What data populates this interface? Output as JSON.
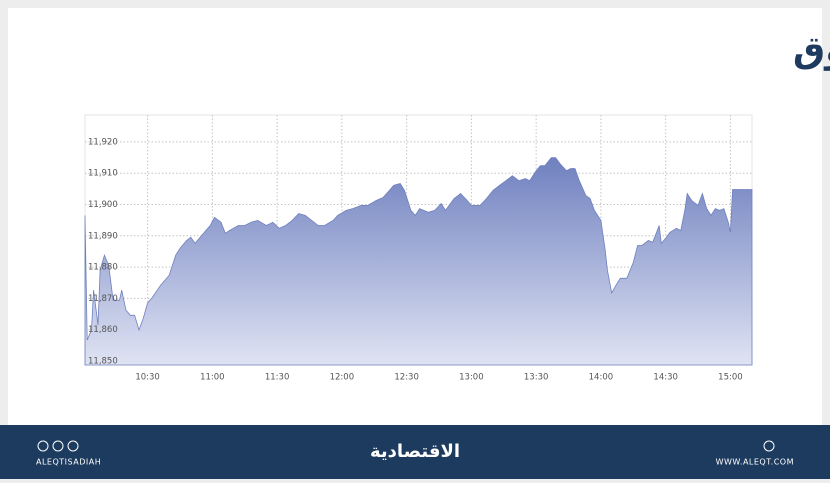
{
  "chart_data": {
    "type": "area",
    "title": "مؤشر السوق",
    "color": "#6f80bf",
    "grid": true,
    "x": [
      "10:01",
      "10:02",
      "10:04",
      "10:05",
      "10:07",
      "10:08",
      "10:10",
      "10:12",
      "10:14",
      "10:17",
      "10:18",
      "10:20",
      "10:22",
      "10:24",
      "10:26",
      "10:28",
      "10:30",
      "10:32",
      "10:36",
      "10:40",
      "10:43",
      "10:45",
      "10:48",
      "10:50",
      "10:52",
      "10:55",
      "10:57",
      "10:59",
      "11:01",
      "11:04",
      "11:06",
      "11:08",
      "11:12",
      "11:15",
      "11:18",
      "11:21",
      "11:25",
      "11:28",
      "11:31",
      "11:34",
      "11:37",
      "11:40",
      "11:43",
      "11:46",
      "11:49",
      "11:52",
      "11:56",
      "11:58",
      "12:02",
      "12:05",
      "12:09",
      "12:12",
      "12:16",
      "12:19",
      "12:22",
      "12:24",
      "12:27",
      "12:29",
      "12:32",
      "12:34",
      "12:36",
      "12:40",
      "12:43",
      "12:46",
      "12:48",
      "12:52",
      "12:55",
      "12:58",
      "13:00",
      "13:04",
      "13:07",
      "13:10",
      "13:13",
      "13:16",
      "13:19",
      "13:22",
      "13:25",
      "13:27",
      "13:30",
      "13:32",
      "13:34",
      "13:37",
      "13:39",
      "13:41",
      "13:44",
      "13:46",
      "13:48",
      "13:50",
      "13:53",
      "13:55",
      "13:57",
      "14:00",
      "14:02",
      "14:03",
      "14:05",
      "14:07",
      "14:09",
      "14:12",
      "14:15",
      "14:17",
      "14:19",
      "14:22",
      "14:24",
      "14:27",
      "14:28",
      "14:30",
      "14:32",
      "14:35",
      "14:37",
      "14:39",
      "14:40",
      "14:42",
      "14:45",
      "14:47",
      "14:49",
      "14:51",
      "14:53",
      "14:55",
      "14:57",
      "14:59",
      "15:00",
      "15:01",
      "15:10"
    ],
    "values": [
      11896.5,
      11856.7,
      11859.9,
      11872.6,
      11861.5,
      11879.0,
      11883.8,
      11880.6,
      11869.4,
      11869.4,
      11872.6,
      11866.2,
      11864.6,
      11864.6,
      11859.9,
      11863.7,
      11868.5,
      11870.1,
      11874.2,
      11877.4,
      11883.8,
      11886.0,
      11888.5,
      11889.5,
      11887.6,
      11890.1,
      11891.7,
      11893.3,
      11895.9,
      11894.3,
      11890.8,
      11891.7,
      11893.3,
      11893.3,
      11894.3,
      11894.9,
      11893.3,
      11894.3,
      11892.4,
      11893.3,
      11894.9,
      11897.1,
      11896.5,
      11894.9,
      11893.3,
      11893.3,
      11894.9,
      11896.5,
      11898.1,
      11898.7,
      11899.7,
      11899.7,
      11901.3,
      11902.2,
      11904.5,
      11906.1,
      11906.7,
      11904.5,
      11898.1,
      11896.5,
      11898.7,
      11897.5,
      11898.1,
      11900.3,
      11898.1,
      11901.9,
      11903.5,
      11901.3,
      11899.7,
      11899.7,
      11901.9,
      11904.5,
      11906.1,
      11907.6,
      11909.2,
      11907.6,
      11908.3,
      11907.6,
      11910.8,
      11912.4,
      11912.4,
      11915.0,
      11915.0,
      11913.1,
      11910.8,
      11911.5,
      11911.5,
      11907.6,
      11902.9,
      11901.9,
      11898.1,
      11894.9,
      11885.4,
      11879.0,
      11871.7,
      11874.2,
      11876.4,
      11876.4,
      11881.5,
      11886.9,
      11886.9,
      11888.5,
      11887.9,
      11893.3,
      11887.6,
      11889.2,
      11891.1,
      11892.4,
      11891.7,
      11898.7,
      11903.5,
      11901.3,
      11899.7,
      11903.5,
      11898.7,
      11896.5,
      11898.7,
      11898.1,
      11898.7,
      11894.3,
      11891.1,
      11904.8,
      11904.8
    ],
    "xlim": [
      "10:01",
      "15:10"
    ],
    "xticks": [
      "10:30",
      "11:00",
      "11:30",
      "12:00",
      "12:30",
      "13:00",
      "13:30",
      "14:00",
      "14:30",
      "15:00"
    ],
    "ylim": [
      11848.7,
      11928.6
    ],
    "yticks": [
      {
        "value": 11850,
        "label": "11,850"
      },
      {
        "value": 11860,
        "label": "11,860"
      },
      {
        "value": 11870,
        "label": "11,870"
      },
      {
        "value": 11880,
        "label": "11,880"
      },
      {
        "value": 11890,
        "label": "11,890"
      },
      {
        "value": 11900,
        "label": "11,900"
      },
      {
        "value": 11910,
        "label": "11,910"
      },
      {
        "value": 11920,
        "label": "11,920"
      }
    ]
  },
  "footer": {
    "handle": "ALEQTISADIAH",
    "logo": "الاقتصادية",
    "website": "WWW.ALEQT.COM"
  }
}
